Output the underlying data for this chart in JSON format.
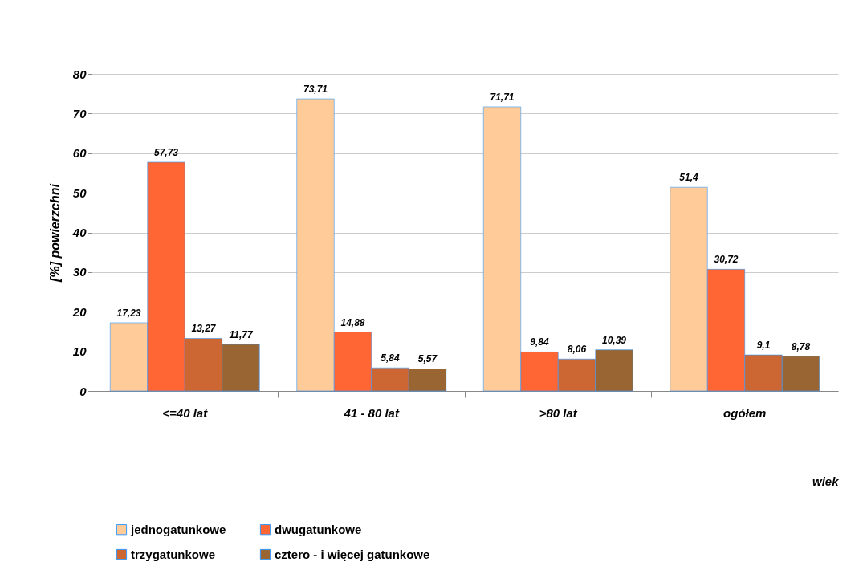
{
  "chart_data": {
    "type": "bar",
    "xlabel": "wiek",
    "ylabel": "[%] powierzchni",
    "categories": [
      "<=40 lat",
      "41 - 80 lat",
      ">80 lat",
      "ogółem"
    ],
    "series": [
      {
        "name": "jednogatunkowe",
        "color": "#ffcc99",
        "values": [
          17.23,
          73.71,
          71.71,
          51.4
        ],
        "value_labels": [
          "17,23",
          "73,71",
          "71,71",
          "51,4"
        ]
      },
      {
        "name": "dwugatunkowe",
        "color": "#ff6633",
        "values": [
          57.73,
          14.88,
          9.84,
          30.72
        ],
        "value_labels": [
          "57,73",
          "14,88",
          "9,84",
          "30,72"
        ]
      },
      {
        "name": "trzygatunkowe",
        "color": "#cc6633",
        "values": [
          13.27,
          5.84,
          8.06,
          9.1
        ],
        "value_labels": [
          "13,27",
          "5,84",
          "8,06",
          "9,1"
        ]
      },
      {
        "name": "cztero - i więcej gatunkowe",
        "color": "#996633",
        "values": [
          11.77,
          5.57,
          10.39,
          8.78
        ],
        "value_labels": [
          "11,77",
          "5,57",
          "10,39",
          "8,78"
        ]
      }
    ],
    "ylim": [
      0,
      80
    ],
    "yticks": [
      0,
      10,
      20,
      30,
      40,
      50,
      60,
      70,
      80
    ],
    "grid": "y",
    "legend": "bottom"
  }
}
